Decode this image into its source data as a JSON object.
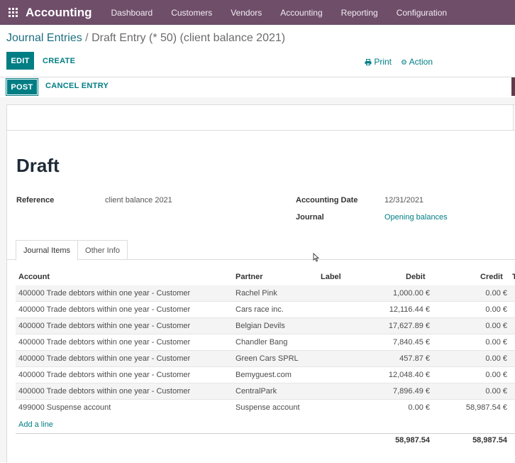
{
  "navbar": {
    "brand": "Accounting",
    "items": [
      "Dashboard",
      "Customers",
      "Vendors",
      "Accounting",
      "Reporting",
      "Configuration"
    ]
  },
  "breadcrumb": {
    "parent": "Journal Entries",
    "separator": "/",
    "current": "Draft Entry (* 50) (client balance 2021)"
  },
  "controls": {
    "edit": "EDIT",
    "create": "CREATE",
    "print": "Print",
    "action": "Action"
  },
  "statusbar": {
    "post": "POST",
    "cancel": "CANCEL ENTRY"
  },
  "form": {
    "title": "Draft",
    "reference_label": "Reference",
    "reference_value": "client balance 2021",
    "date_label": "Accounting Date",
    "date_value": "12/31/2021",
    "journal_label": "Journal",
    "journal_value": "Opening balances"
  },
  "tabs": {
    "items": "Journal Items",
    "other": "Other Info"
  },
  "table": {
    "headers": {
      "account": "Account",
      "partner": "Partner",
      "label": "Label",
      "debit": "Debit",
      "credit": "Credit",
      "extra": "T"
    },
    "rows": [
      {
        "account": "400000 Trade debtors within one year - Customer",
        "partner": "Rachel Pink",
        "debit": "1,000.00 €",
        "credit": "0.00 €"
      },
      {
        "account": "400000 Trade debtors within one year - Customer",
        "partner": "Cars race inc.",
        "debit": "12,116.44 €",
        "credit": "0.00 €"
      },
      {
        "account": "400000 Trade debtors within one year - Customer",
        "partner": "Belgian Devils",
        "debit": "17,627.89 €",
        "credit": "0.00 €"
      },
      {
        "account": "400000 Trade debtors within one year - Customer",
        "partner": "Chandler Bang",
        "debit": "7,840.45 €",
        "credit": "0.00 €"
      },
      {
        "account": "400000 Trade debtors within one year - Customer",
        "partner": "Green Cars SPRL",
        "debit": "457.87 €",
        "credit": "0.00 €"
      },
      {
        "account": "400000 Trade debtors within one year - Customer",
        "partner": "Bemyguest.com",
        "debit": "12,048.40 €",
        "credit": "0.00 €"
      },
      {
        "account": "400000 Trade debtors within one year - Customer",
        "partner": "CentralPark",
        "debit": "7,896.49 €",
        "credit": "0.00 €"
      },
      {
        "account": "499000 Suspense account",
        "partner": "Suspense account",
        "debit": "0.00 €",
        "credit": "58,987.54 €"
      }
    ],
    "add_line": "Add a line",
    "total_debit": "58,987.54",
    "total_credit": "58,987.54"
  }
}
